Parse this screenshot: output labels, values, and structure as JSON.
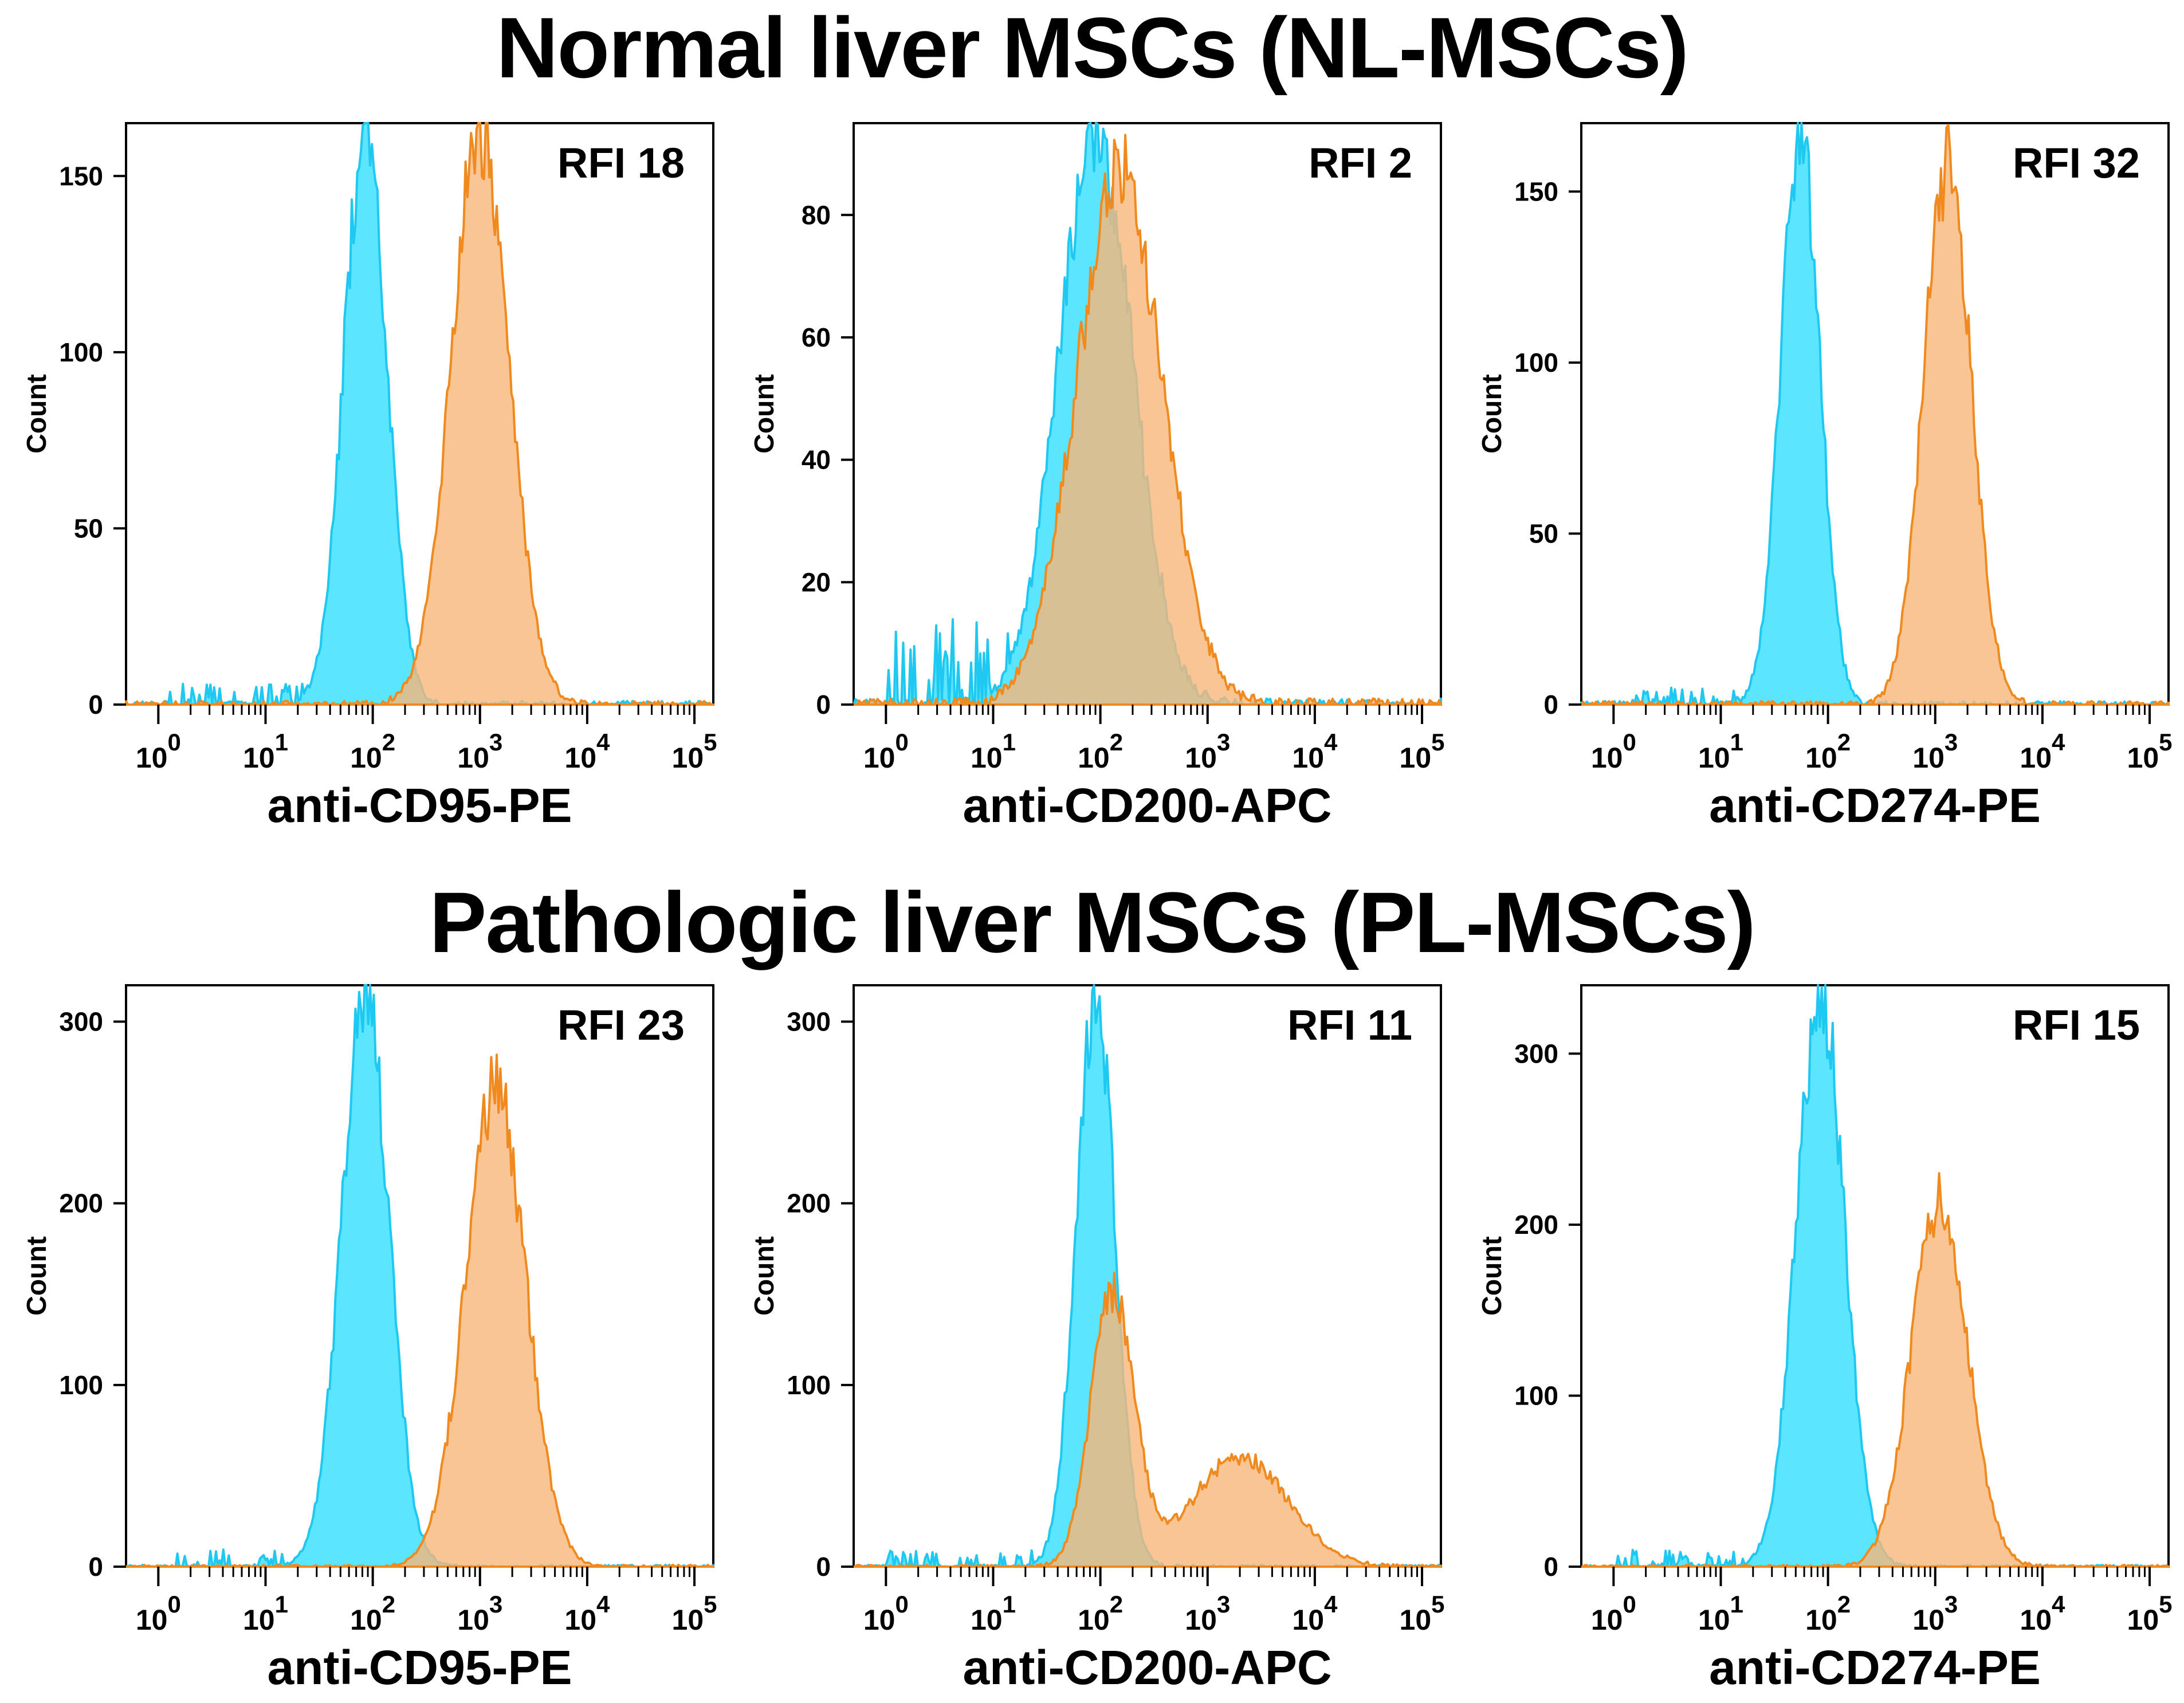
{
  "figure": {
    "top_title": "Normal liver MSCs (NL-MSCs)",
    "bottom_title": "Pathologic liver MSCs (PL-MSCs)"
  },
  "colors": {
    "isotype_stroke": "#1ec8f0",
    "isotype_fill": "#3ee0ff",
    "marker_stroke": "#f08a1e",
    "marker_fill": "#f8b67a",
    "overlap_fill": "#7db9a6"
  },
  "chart_data": [
    {
      "type": "histogram",
      "group": "Normal liver MSCs (NL-MSCs)",
      "annotation": "RFI 18",
      "xlabel": "anti-CD95-PE",
      "ylabel": "Count",
      "xscale": "log",
      "xlim": [
        0.5,
        150000
      ],
      "ylim": [
        0,
        165
      ],
      "x_ticks": [
        1,
        10,
        100,
        1000,
        10000,
        100000
      ],
      "y_ticks": [
        0,
        50,
        100,
        150
      ],
      "series": [
        {
          "role": "isotype",
          "peak_x": 85,
          "peak_count": 162,
          "log_sd": 0.2,
          "noise_floor": 6
        },
        {
          "role": "marker",
          "peak_x": 1000,
          "peak_count": 163,
          "log_sd": 0.27
        }
      ]
    },
    {
      "type": "histogram",
      "group": "Normal liver MSCs (NL-MSCs)",
      "annotation": "RFI 2",
      "xlabel": "anti-CD200-APC",
      "ylabel": "Count",
      "xscale": "log",
      "xlim": [
        0.5,
        150000
      ],
      "ylim": [
        0,
        95
      ],
      "x_ticks": [
        1,
        10,
        100,
        1000,
        10000,
        100000
      ],
      "y_ticks": [
        0,
        20,
        40,
        60,
        80
      ],
      "series": [
        {
          "role": "isotype",
          "peak_x": 90,
          "peak_count": 92,
          "log_sd": 0.35,
          "noise_floor": 14
        },
        {
          "role": "marker",
          "peak_x": 150,
          "peak_count": 87,
          "log_sd": 0.4
        }
      ]
    },
    {
      "type": "histogram",
      "group": "Normal liver MSCs (NL-MSCs)",
      "annotation": "RFI 32",
      "xlabel": "anti-CD274-PE",
      "ylabel": "Count",
      "xscale": "log",
      "xlim": [
        0.5,
        150000
      ],
      "ylim": [
        0,
        170
      ],
      "x_ticks": [
        1,
        10,
        100,
        1000,
        10000,
        100000
      ],
      "y_ticks": [
        0,
        50,
        100,
        150
      ],
      "series": [
        {
          "role": "isotype",
          "peak_x": 55,
          "peak_count": 168,
          "log_sd": 0.18,
          "noise_floor": 5
        },
        {
          "role": "marker",
          "peak_x": 1300,
          "peak_count": 157,
          "log_sd": 0.22
        }
      ]
    },
    {
      "type": "histogram",
      "group": "Pathologic liver MSCs (PL-MSCs)",
      "annotation": "RFI 23",
      "xlabel": "anti-CD95-PE",
      "ylabel": "Count",
      "xscale": "log",
      "xlim": [
        0.5,
        150000
      ],
      "ylim": [
        0,
        320
      ],
      "x_ticks": [
        1,
        10,
        100,
        1000,
        10000,
        100000
      ],
      "y_ticks": [
        0,
        100,
        200,
        300
      ],
      "series": [
        {
          "role": "isotype",
          "peak_x": 85,
          "peak_count": 315,
          "log_sd": 0.22,
          "noise_floor": 10
        },
        {
          "role": "marker",
          "peak_x": 1400,
          "peak_count": 262,
          "log_sd": 0.28
        }
      ]
    },
    {
      "type": "histogram",
      "group": "Pathologic liver MSCs (PL-MSCs)",
      "annotation": "RFI 11",
      "xlabel": "anti-CD200-APC",
      "ylabel": "Count",
      "xscale": "log",
      "xlim": [
        0.5,
        150000
      ],
      "ylim": [
        0,
        320
      ],
      "x_ticks": [
        1,
        10,
        100,
        1000,
        10000,
        100000
      ],
      "y_ticks": [
        0,
        100,
        200,
        300
      ],
      "series": [
        {
          "role": "isotype",
          "peak_x": 90,
          "peak_count": 315,
          "log_sd": 0.18,
          "noise_floor": 10
        },
        {
          "role": "marker",
          "peak_x": 130,
          "peak_count": 150,
          "log_sd": 0.2,
          "second_peak_x": 2000,
          "second_peak_count": 60,
          "second_log_sd": 0.45
        }
      ]
    },
    {
      "type": "histogram",
      "group": "Pathologic liver MSCs (PL-MSCs)",
      "annotation": "RFI 15",
      "xlabel": "anti-CD274-PE",
      "ylabel": "Count",
      "xscale": "log",
      "xlim": [
        0.5,
        150000
      ],
      "ylim": [
        0,
        340
      ],
      "x_ticks": [
        1,
        10,
        100,
        1000,
        10000,
        100000
      ],
      "y_ticks": [
        0,
        100,
        200,
        300
      ],
      "series": [
        {
          "role": "isotype",
          "peak_x": 85,
          "peak_count": 337,
          "log_sd": 0.22,
          "noise_floor": 10
        },
        {
          "role": "marker",
          "peak_x": 1100,
          "peak_count": 215,
          "log_sd": 0.26
        }
      ]
    }
  ]
}
